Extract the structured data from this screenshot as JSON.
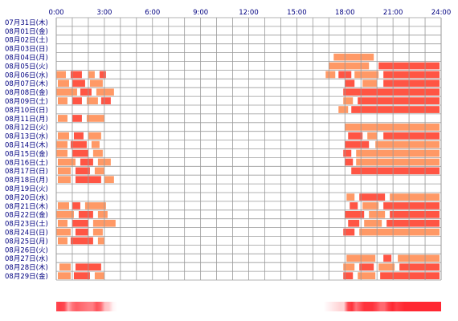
{
  "chart_data": {
    "type": "heatmap",
    "title": "",
    "xlabel": "",
    "ylabel": "",
    "x_range_hours": [
      0,
      24
    ],
    "x_tick_labels": [
      "0:00",
      "3:00",
      "6:00",
      "9:00",
      "12:00",
      "15:00",
      "18:00",
      "21:00",
      "24:00"
    ],
    "grid": true,
    "colors": {
      "grid": "#9a9a9a",
      "label": "#000080",
      "light": "#ff9966",
      "dark": "#ff5544"
    },
    "days": [
      {
        "label": "07月31日(木)",
        "segments": []
      },
      {
        "label": "08月01日(金)",
        "segments": []
      },
      {
        "label": "08月02日(土)",
        "segments": []
      },
      {
        "label": "08月03日(日)",
        "segments": []
      },
      {
        "label": "08月04日(月)",
        "segments": [
          [
            17.3,
            19.8
          ]
        ]
      },
      {
        "label": "08月05日(火)",
        "segments": [
          [
            17.0,
            19.5
          ],
          [
            20.1,
            23.9
          ]
        ]
      },
      {
        "label": "08月06日(水)",
        "segments": [
          [
            0.0,
            0.6
          ],
          [
            0.9,
            1.6
          ],
          [
            2.0,
            2.4
          ],
          [
            2.7,
            3.1
          ],
          [
            16.8,
            17.4
          ],
          [
            17.6,
            18.4
          ],
          [
            18.6,
            20.1
          ],
          [
            20.4,
            23.9
          ]
        ]
      },
      {
        "label": "08月07日(木)",
        "segments": [
          [
            0.1,
            0.8
          ],
          [
            1.0,
            1.8
          ],
          [
            2.1,
            2.9
          ],
          [
            18.0,
            18.6
          ],
          [
            19.1,
            20.0
          ],
          [
            20.4,
            23.9
          ]
        ]
      },
      {
        "label": "08月08日(金)",
        "segments": [
          [
            0.0,
            1.3
          ],
          [
            1.5,
            2.2
          ],
          [
            2.5,
            3.6
          ],
          [
            17.9,
            23.9
          ]
        ]
      },
      {
        "label": "08月09日(土)",
        "segments": [
          [
            0.1,
            0.7
          ],
          [
            1.0,
            1.6
          ],
          [
            1.9,
            2.6
          ],
          [
            2.8,
            3.4
          ],
          [
            17.9,
            18.5
          ],
          [
            18.8,
            23.9
          ]
        ]
      },
      {
        "label": "08月10日(日)",
        "segments": [
          [
            17.6,
            18.2
          ],
          [
            18.4,
            23.9
          ]
        ]
      },
      {
        "label": "08月11日(月)",
        "segments": [
          [
            0.1,
            0.7
          ],
          [
            1.0,
            1.6
          ],
          [
            1.9,
            3.0
          ]
        ]
      },
      {
        "label": "08月12日(火)",
        "segments": [
          [
            18.0,
            23.9
          ]
        ]
      },
      {
        "label": "08月13日(水)",
        "segments": [
          [
            0.1,
            0.8
          ],
          [
            1.1,
            1.7
          ],
          [
            2.0,
            2.8
          ],
          [
            18.2,
            19.1
          ],
          [
            19.4,
            20.0
          ],
          [
            20.4,
            23.9
          ]
        ]
      },
      {
        "label": "08月14日(木)",
        "segments": [
          [
            0.0,
            0.7
          ],
          [
            0.9,
            1.9
          ],
          [
            2.2,
            2.7
          ],
          [
            18.0,
            19.5
          ],
          [
            19.9,
            23.9
          ]
        ]
      },
      {
        "label": "08月15日(金)",
        "segments": [
          [
            0.0,
            0.7
          ],
          [
            1.0,
            2.0
          ],
          [
            2.3,
            2.9
          ],
          [
            17.9,
            18.4
          ],
          [
            18.7,
            23.9
          ]
        ]
      },
      {
        "label": "08月16日(土)",
        "segments": [
          [
            0.1,
            1.2
          ],
          [
            1.5,
            2.3
          ],
          [
            2.6,
            3.4
          ],
          [
            18.0,
            18.5
          ],
          [
            18.7,
            23.9
          ]
        ]
      },
      {
        "label": "08月17日(日)",
        "segments": [
          [
            0.1,
            0.9
          ],
          [
            1.2,
            2.1
          ],
          [
            2.4,
            3.0
          ],
          [
            18.4,
            23.9
          ]
        ]
      },
      {
        "label": "08月18日(月)",
        "segments": [
          [
            0.1,
            0.9
          ],
          [
            1.2,
            2.8
          ],
          [
            3.0,
            3.6
          ]
        ]
      },
      {
        "label": "08月19日(火)",
        "segments": []
      },
      {
        "label": "08月20日(水)",
        "segments": [
          [
            18.1,
            18.6
          ],
          [
            18.9,
            20.5
          ],
          [
            20.8,
            23.9
          ]
        ]
      },
      {
        "label": "08月21日(木)",
        "segments": [
          [
            0.1,
            0.8
          ],
          [
            1.0,
            1.5
          ],
          [
            1.8,
            3.1
          ],
          [
            18.3,
            18.8
          ],
          [
            19.1,
            20.1
          ],
          [
            20.4,
            23.9
          ]
        ]
      },
      {
        "label": "08月22日(金)",
        "segments": [
          [
            0.0,
            1.1
          ],
          [
            1.4,
            2.3
          ],
          [
            2.6,
            3.2
          ],
          [
            18.0,
            19.2
          ],
          [
            19.5,
            20.5
          ],
          [
            20.8,
            23.9
          ]
        ]
      },
      {
        "label": "08月23日(土)",
        "segments": [
          [
            0.1,
            0.7
          ],
          [
            1.0,
            2.0
          ],
          [
            2.3,
            3.7
          ],
          [
            18.2,
            18.9
          ],
          [
            19.2,
            20.3
          ],
          [
            20.6,
            23.9
          ]
        ]
      },
      {
        "label": "08月24日(日)",
        "segments": [
          [
            0.0,
            0.9
          ],
          [
            1.2,
            2.0
          ],
          [
            2.3,
            2.9
          ],
          [
            17.9,
            18.6
          ],
          [
            18.9,
            23.9
          ]
        ]
      },
      {
        "label": "08月25日(月)",
        "segments": [
          [
            0.1,
            0.7
          ],
          [
            0.9,
            2.3
          ],
          [
            2.6,
            3.0
          ]
        ]
      },
      {
        "label": "08月26日(火)",
        "segments": []
      },
      {
        "label": "08月27日(水)",
        "segments": [
          [
            18.1,
            19.9
          ],
          [
            20.4,
            20.9
          ],
          [
            21.3,
            23.9
          ]
        ]
      },
      {
        "label": "08月28日(木)",
        "segments": [
          [
            0.2,
            0.9
          ],
          [
            1.2,
            2.8
          ],
          [
            17.9,
            18.6
          ],
          [
            18.9,
            19.8
          ],
          [
            20.1,
            21.1
          ],
          [
            21.4,
            23.9
          ]
        ]
      },
      {
        "label": "08月29日(金)",
        "segments": [
          [
            0.1,
            0.9
          ],
          [
            1.1,
            2.1
          ],
          [
            2.4,
            3.0
          ],
          [
            17.9,
            18.5
          ],
          [
            18.8,
            19.9
          ],
          [
            20.2,
            23.9
          ]
        ]
      }
    ]
  }
}
